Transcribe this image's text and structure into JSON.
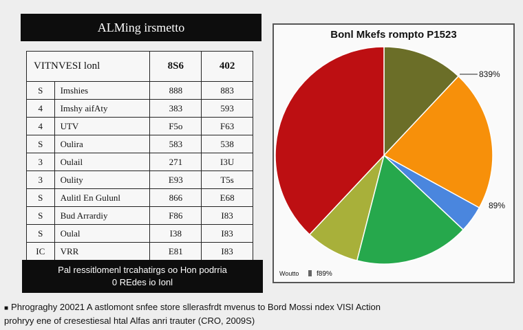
{
  "table": {
    "title": "ALMing irsmetto",
    "header_label": "VITNVESI lonl",
    "header_col1": "8S6",
    "header_col2": "402",
    "rows": [
      {
        "num": "S",
        "name": "Imshies",
        "v1": "888",
        "v2": "883"
      },
      {
        "num": "4",
        "name": "Imshy aifAty",
        "v1": "383",
        "v2": "593"
      },
      {
        "num": "4",
        "name": "UTV",
        "v1": "F5o",
        "v2": "F63"
      },
      {
        "num": "S",
        "name": "Oulira",
        "v1": "583",
        "v2": "538"
      },
      {
        "num": "3",
        "name": "Oulail",
        "v1": "271",
        "v2": "I3U"
      },
      {
        "num": "3",
        "name": "Oulity",
        "v1": "E93",
        "v2": "T5s"
      },
      {
        "num": "S",
        "name": "Aulitl En Gulunl",
        "v1": "866",
        "v2": "E68"
      },
      {
        "num": "S",
        "name": "Bud Arrardiy",
        "v1": "F86",
        "v2": "I83"
      },
      {
        "num": "S",
        "name": "Oulal",
        "v1": "I38",
        "v2": "I83"
      },
      {
        "num": "IC",
        "name": "VRR",
        "v1": "E81",
        "v2": "I83"
      }
    ],
    "note_line1": "Pal ressitlomenl trcahatirgs oo Hon podrria",
    "note_line2": "0 REdes io Ionl"
  },
  "chart_data": {
    "type": "pie",
    "title": "Bonl Mkefs rompto P1523",
    "slices": [
      {
        "label": "",
        "value": 12,
        "color": "#6b6e28"
      },
      {
        "label": "",
        "value": 21,
        "color": "#f7900a"
      },
      {
        "label": "",
        "value": 4,
        "color": "#4a86de"
      },
      {
        "label": "",
        "value": 17,
        "color": "#26a84c"
      },
      {
        "label": "",
        "value": 8,
        "color": "#a8b03a"
      },
      {
        "label": "",
        "value": 38,
        "color": "#bd0f12"
      }
    ],
    "annotations": [
      "839%",
      "89%"
    ],
    "legend_label": "Woutto",
    "legend_value": "f89%"
  },
  "footer": {
    "line1": "Phrograghy 20021 A astlomont snfee store sllerasfrdt mvenus to Bord Mossi ndex VISI Action",
    "line2": "prohryy ene of cresestiesal htal Alfas anri trauter (CRO, 2009S)"
  }
}
